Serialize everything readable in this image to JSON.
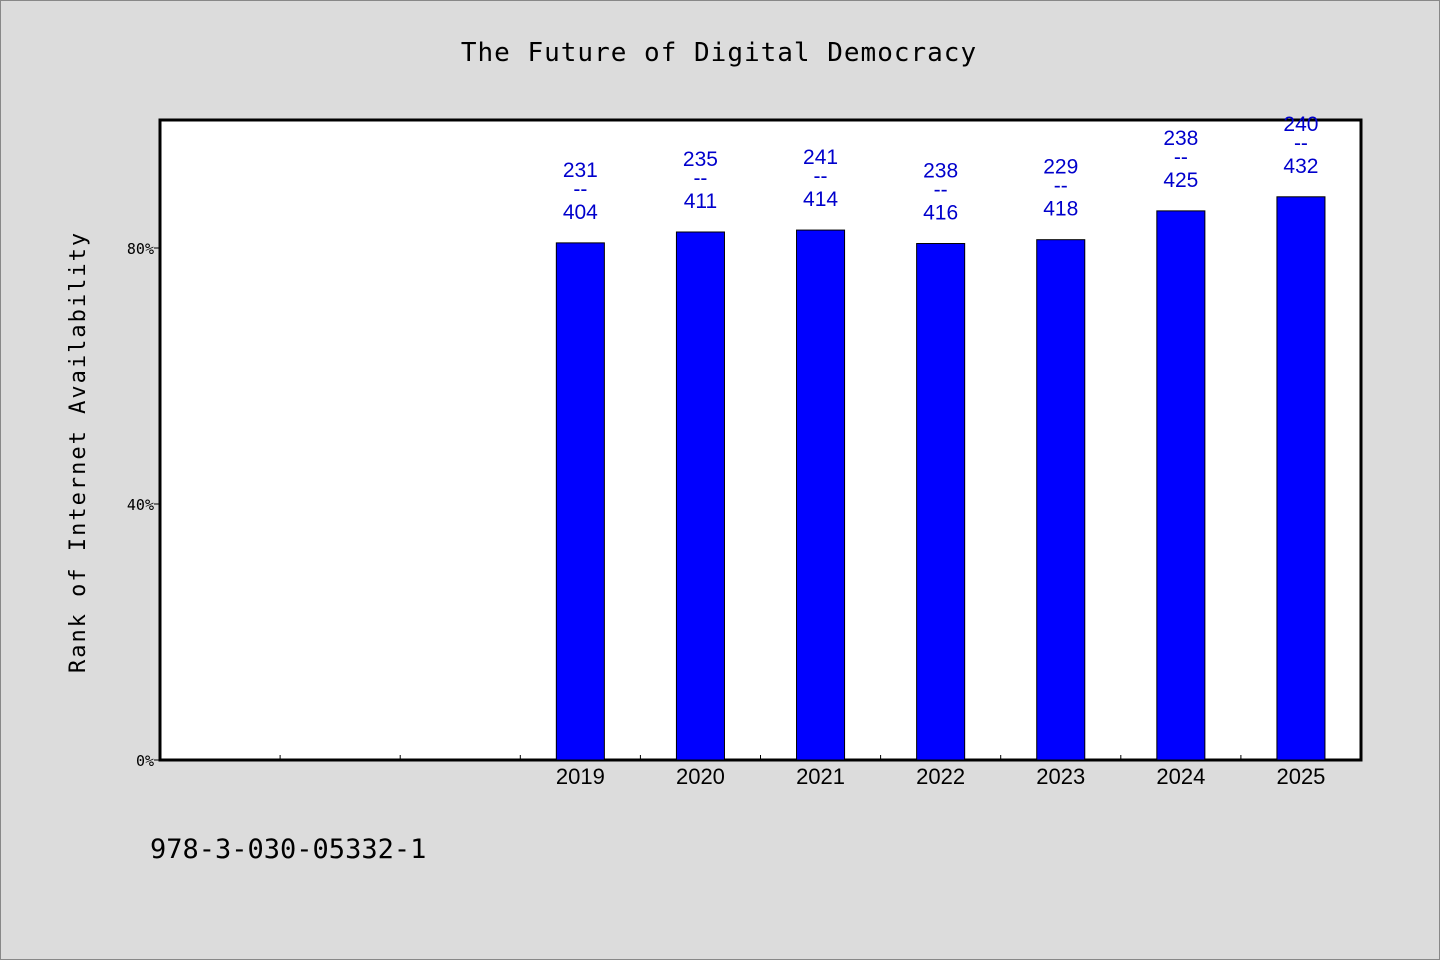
{
  "chart_data": {
    "type": "bar",
    "title": "The Future of Digital Democracy",
    "ylabel": "Rank of Internet Availability",
    "xlabel": "",
    "ylim": [
      0,
      100
    ],
    "yticks": [
      {
        "value": 0,
        "label": "0%"
      },
      {
        "value": 40,
        "label": "40%"
      },
      {
        "value": 80,
        "label": "80%"
      }
    ],
    "slots": [
      "",
      "",
      "",
      "2019",
      "2020",
      "2021",
      "2022",
      "2023",
      "2024",
      "2025"
    ],
    "categories": [
      "2019",
      "2020",
      "2021",
      "2022",
      "2023",
      "2024",
      "2025"
    ],
    "values": [
      80.8,
      82.5,
      82.8,
      80.7,
      81.3,
      85.8,
      88.0
    ],
    "data_labels": [
      {
        "top": "231",
        "sep": "--",
        "bottom": "404"
      },
      {
        "top": "235",
        "sep": "--",
        "bottom": "411"
      },
      {
        "top": "241",
        "sep": "--",
        "bottom": "414"
      },
      {
        "top": "238",
        "sep": "--",
        "bottom": "416"
      },
      {
        "top": "229",
        "sep": "--",
        "bottom": "418"
      },
      {
        "top": "238",
        "sep": "--",
        "bottom": "425"
      },
      {
        "top": "240",
        "sep": "--",
        "bottom": "432"
      }
    ],
    "grid": false,
    "legend": "none",
    "colors": {
      "bar": "#0000ff",
      "label": "#0000cc",
      "background": "#dcdcdc",
      "plot": "#ffffff"
    }
  },
  "footer": {
    "code": "978-3-030-05332-1"
  }
}
